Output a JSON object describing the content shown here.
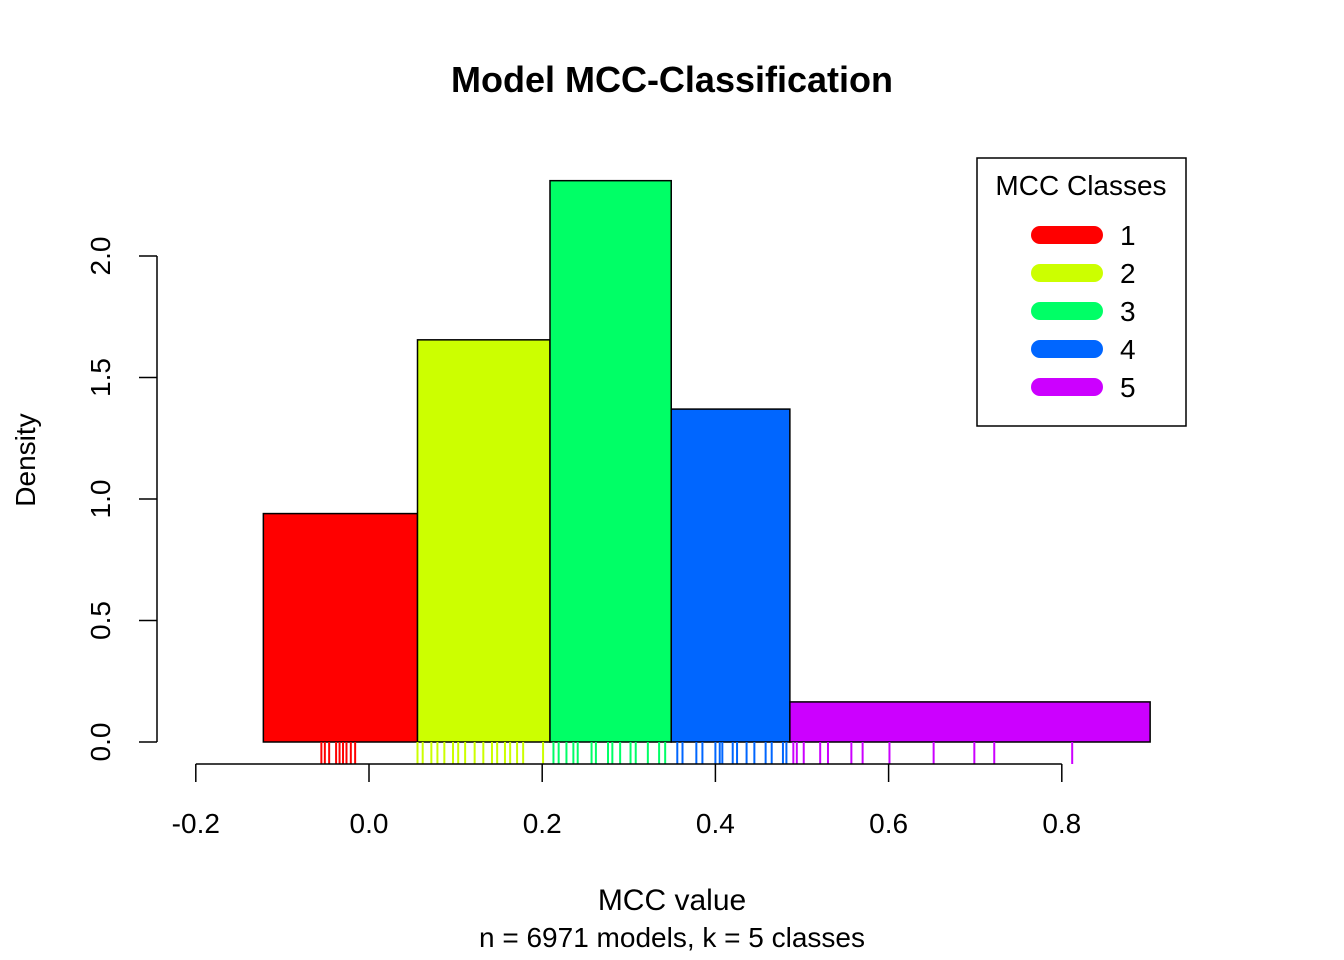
{
  "chart_data": {
    "type": "histogram",
    "title": "Model MCC-Classification",
    "xlabel": "MCC value",
    "subtitle": "n = 6971 models, k = 5 classes",
    "ylabel": "Density",
    "xlim": [
      -0.2,
      0.8
    ],
    "ylim": [
      0,
      2.0
    ],
    "x_ticks": [
      "-0.2",
      "0.0",
      "0.2",
      "0.4",
      "0.6",
      "0.8"
    ],
    "y_ticks": [
      "0.0",
      "0.5",
      "1.0",
      "1.5",
      "2.0"
    ],
    "bins": [
      {
        "class": "1",
        "x0": -0.122,
        "x1": 0.056,
        "density": 0.94,
        "color": "#ff0000"
      },
      {
        "class": "2",
        "x0": 0.056,
        "x1": 0.209,
        "density": 1.655,
        "color": "#ccff00"
      },
      {
        "class": "3",
        "x0": 0.209,
        "x1": 0.349,
        "density": 2.31,
        "color": "#00ff66"
      },
      {
        "class": "4",
        "x0": 0.349,
        "x1": 0.486,
        "density": 1.37,
        "color": "#0066ff"
      },
      {
        "class": "5",
        "x0": 0.486,
        "x1": 0.902,
        "density": 0.165,
        "color": "#cc00ff"
      }
    ],
    "rug": [
      {
        "class": "1",
        "color": "#ff0000",
        "values": [
          -0.055,
          -0.051,
          -0.046,
          -0.038,
          -0.034,
          -0.03,
          -0.026,
          -0.021,
          -0.016
        ]
      },
      {
        "class": "2",
        "color": "#ccff00",
        "values": [
          0.056,
          0.062,
          0.072,
          0.079,
          0.087,
          0.097,
          0.103,
          0.111,
          0.122,
          0.132,
          0.142,
          0.148,
          0.157,
          0.163,
          0.171,
          0.178,
          0.201
        ]
      },
      {
        "class": "3",
        "color": "#00ff66",
        "values": [
          0.213,
          0.219,
          0.228,
          0.236,
          0.241,
          0.257,
          0.262,
          0.276,
          0.281,
          0.29,
          0.302,
          0.308,
          0.322,
          0.335,
          0.342
        ]
      },
      {
        "class": "4",
        "color": "#0066ff",
        "values": [
          0.356,
          0.362,
          0.378,
          0.385,
          0.4,
          0.405,
          0.408,
          0.42,
          0.425,
          0.436,
          0.445,
          0.458,
          0.465,
          0.478,
          0.482
        ]
      },
      {
        "class": "5",
        "color": "#cc00ff",
        "values": [
          0.49,
          0.494,
          0.502,
          0.521,
          0.53,
          0.557,
          0.57,
          0.601,
          0.652,
          0.699,
          0.722,
          0.812
        ]
      }
    ],
    "legend": {
      "title": "MCC Classes",
      "position": "top-right",
      "entries": [
        {
          "label": "1",
          "color": "#ff0000"
        },
        {
          "label": "2",
          "color": "#ccff00"
        },
        {
          "label": "3",
          "color": "#00ff66"
        },
        {
          "label": "4",
          "color": "#0066ff"
        },
        {
          "label": "5",
          "color": "#cc00ff"
        }
      ]
    }
  }
}
